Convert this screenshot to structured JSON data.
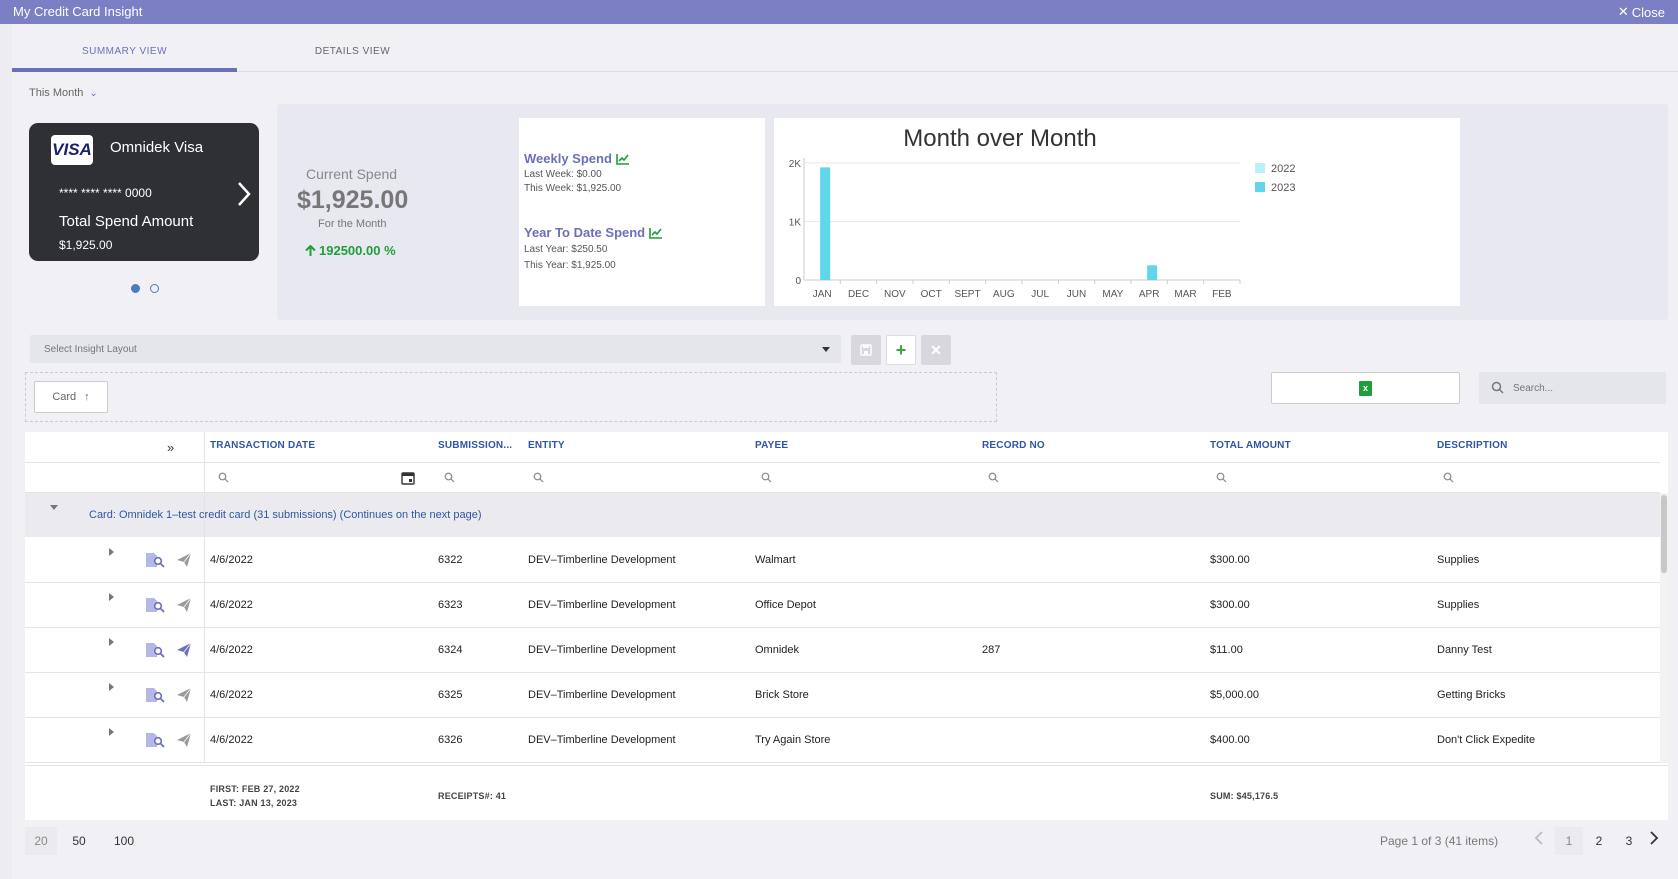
{
  "window": {
    "title": "My Credit Card Insight",
    "close_label": "Close"
  },
  "tabs": [
    {
      "label": "SUMMARY VIEW",
      "active": true
    },
    {
      "label": "DETAILS VIEW",
      "active": false
    }
  ],
  "period": {
    "label": "This Month"
  },
  "card": {
    "brand": "VISA",
    "name": "Omnidek Visa",
    "number": "**** **** **** 0000",
    "spend_label": "Total Spend Amount",
    "spend_amount": "$1,925.00",
    "pages": 2,
    "current_page": 1
  },
  "current_spend": {
    "label": "Current Spend",
    "amount": "$1,925.00",
    "subtitle": "For the Month",
    "change": "192500.00 %"
  },
  "weekly_spend": {
    "title": "Weekly Spend",
    "last_label": "Last Week: $0.00",
    "this_label": "This Week: $1,925.00"
  },
  "ytd_spend": {
    "title": "Year To Date Spend",
    "last_label": "Last Year: $250.50",
    "this_label": "This Year: $1,925.00"
  },
  "chart_data": {
    "type": "bar",
    "title": "Month over Month",
    "categories": [
      "JAN",
      "DEC",
      "NOV",
      "OCT",
      "SEPT",
      "AUG",
      "JUL",
      "JUN",
      "MAY",
      "APR",
      "MAR",
      "FEB"
    ],
    "series": [
      {
        "name": "2022",
        "color": "#b8f1f8",
        "values": [
          0,
          0,
          0,
          0,
          0,
          0,
          0,
          0,
          0,
          0,
          0,
          0
        ]
      },
      {
        "name": "2023",
        "color": "#5fd6ea",
        "values": [
          1925,
          0,
          0,
          0,
          0,
          0,
          0,
          0,
          0,
          250.5,
          0,
          0
        ]
      }
    ],
    "yticks": [
      "0",
      "1K",
      "2K"
    ],
    "ylim": [
      0,
      2000
    ],
    "legend": "right",
    "grid": true
  },
  "toolbar": {
    "layout_placeholder": "Select Insight Layout"
  },
  "grouping": {
    "chip_label": "Card"
  },
  "search": {
    "placeholder": "Search..."
  },
  "grid": {
    "columns": [
      "TRANSACTION DATE",
      "SUBMISSION...",
      "ENTITY",
      "PAYEE",
      "RECORD NO",
      "TOTAL AMOUNT",
      "DESCRIPTION"
    ],
    "group_label": "Card: Omnidek 1–test credit card (31 submissions) (Continues on the next page)",
    "rows": [
      {
        "date": "4/6/2022",
        "submission": "6322",
        "entity": "DEV–Timberline Development",
        "payee": "Walmart",
        "record": "",
        "amount": "$300.00",
        "description": "Supplies",
        "sent": false
      },
      {
        "date": "4/6/2022",
        "submission": "6323",
        "entity": "DEV–Timberline Development",
        "payee": "Office Depot",
        "record": "",
        "amount": "$300.00",
        "description": "Supplies",
        "sent": false
      },
      {
        "date": "4/6/2022",
        "submission": "6324",
        "entity": "DEV–Timberline Development",
        "payee": "Omnidek",
        "record": "287",
        "amount": "$11.00",
        "description": "Danny Test",
        "sent": true
      },
      {
        "date": "4/6/2022",
        "submission": "6325",
        "entity": "DEV–Timberline Development",
        "payee": "Brick Store",
        "record": "",
        "amount": "$5,000.00",
        "description": "Getting Bricks",
        "sent": false
      },
      {
        "date": "4/6/2022",
        "submission": "6326",
        "entity": "DEV–Timberline Development",
        "payee": "Try Again Store",
        "record": "",
        "amount": "$400.00",
        "description": "Don't Click Expedite",
        "sent": false
      }
    ],
    "footer": {
      "first": "FIRST: FEB 27, 2022",
      "last": "LAST: JAN 13, 2023",
      "receipts": "RECEIPTS#: 41",
      "sum": "SUM: $45,176.5"
    }
  },
  "pager": {
    "sizes": [
      "20",
      "50",
      "100"
    ],
    "selected_size": "20",
    "info": "Page 1 of 3 (41 items)",
    "pages": [
      "1",
      "2",
      "3"
    ],
    "current": "1"
  },
  "colors": {
    "accent": "#6b6fb9",
    "title_bar": "#7b7fc4",
    "link": "#2f55a4",
    "positive": "#1f9e39"
  }
}
